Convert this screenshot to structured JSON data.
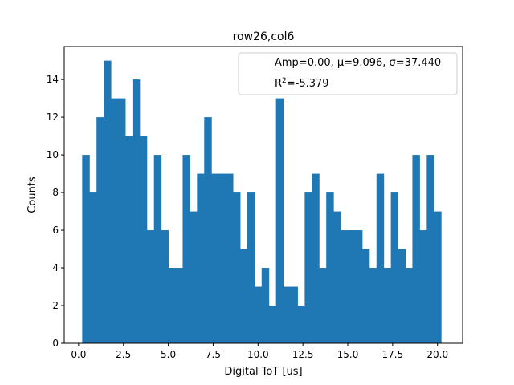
{
  "chart_data": {
    "type": "bar",
    "title": "row26,col6",
    "xlabel": "Digital ToT [us]",
    "ylabel": "Counts",
    "xlim": [
      -0.8,
      21.4
    ],
    "ylim": [
      0,
      15.75
    ],
    "xticks": [
      0.0,
      2.5,
      5.0,
      7.5,
      10.0,
      12.5,
      15.0,
      17.5,
      20.0
    ],
    "xtick_labels": [
      "0.0",
      "2.5",
      "5.0",
      "7.5",
      "10.0",
      "12.5",
      "15.0",
      "17.5",
      "20.0"
    ],
    "yticks": [
      0,
      2,
      4,
      6,
      8,
      10,
      12,
      14
    ],
    "ytick_labels": [
      "0",
      "2",
      "4",
      "6",
      "8",
      "10",
      "12",
      "14"
    ],
    "bin_start": 0.2,
    "bin_width": 0.4,
    "values": [
      10,
      8,
      12,
      15,
      13,
      13,
      11,
      14,
      11,
      6,
      10,
      6,
      4,
      4,
      10,
      7,
      9,
      12,
      9,
      9,
      9,
      8,
      5,
      8,
      3,
      4,
      2,
      13,
      3,
      3,
      2,
      8,
      9,
      4,
      8,
      7,
      6,
      6,
      6,
      5,
      4,
      9,
      4,
      8,
      5,
      4,
      10,
      6,
      10,
      7
    ],
    "bar_color": "#1f77b4",
    "grid": false,
    "legend_position": "top-right",
    "legend": {
      "line1": "Amp=0.00, μ=9.096, σ=37.440",
      "line2_prefix": "R",
      "line2_sup": "2",
      "line2_suffix": "=-5.379"
    }
  }
}
